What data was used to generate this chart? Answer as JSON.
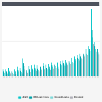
{
  "title": "",
  "series": {
    "s1": [
      1.0,
      1.0,
      1.2,
      1.0,
      1.0,
      1.3,
      1.2,
      2.5,
      1.3,
      1.4,
      1.5,
      1.6,
      1.5,
      1.7,
      1.8,
      1.6,
      1.7,
      1.9,
      2.0,
      1.9,
      2.1,
      2.2,
      2.3,
      2.5,
      2.6,
      2.8,
      3.0,
      3.2,
      3.6,
      3.8,
      4.2,
      9.5,
      4.8,
      4.2
    ],
    "s2": [
      0.7,
      0.7,
      0.8,
      0.7,
      0.7,
      0.9,
      0.8,
      1.8,
      0.9,
      1.0,
      1.1,
      1.2,
      1.1,
      1.3,
      1.4,
      1.2,
      1.3,
      1.5,
      1.6,
      1.5,
      1.7,
      1.8,
      1.9,
      2.1,
      2.2,
      2.4,
      2.6,
      2.8,
      3.2,
      3.4,
      3.8,
      6.5,
      4.2,
      3.8
    ],
    "s3": [
      0.5,
      0.5,
      0.6,
      0.5,
      0.5,
      0.7,
      0.6,
      1.4,
      0.7,
      0.8,
      0.9,
      1.0,
      0.9,
      1.1,
      1.2,
      1.0,
      1.1,
      1.3,
      1.4,
      1.3,
      1.5,
      1.6,
      1.7,
      1.9,
      2.0,
      2.2,
      2.4,
      2.6,
      3.0,
      3.2,
      3.6,
      5.5,
      3.8,
      3.4
    ],
    "s4": [
      0.3,
      0.3,
      0.4,
      0.3,
      0.3,
      0.5,
      0.4,
      1.0,
      0.5,
      0.6,
      0.7,
      0.8,
      0.7,
      0.9,
      1.0,
      0.8,
      0.9,
      1.1,
      1.2,
      1.1,
      1.3,
      1.4,
      1.5,
      1.7,
      1.8,
      2.0,
      2.2,
      2.4,
      2.8,
      3.0,
      3.4,
      4.5,
      3.5,
      3.1
    ]
  },
  "colors": [
    "#00c5c8",
    "#00a0a8",
    "#7dd8d8",
    "#b0b0b8"
  ],
  "legend_labels": [
    "2020",
    "WR/Liabilities",
    "Closed/Liabs",
    "Blended"
  ],
  "legend_colors": [
    "#00c5c8",
    "#00a0a8",
    "#7dd8d8",
    "#b0b0b8"
  ],
  "background_color": "#f5f5f5",
  "plot_bg": "#ffffff",
  "grid_color": "#d8d8d8",
  "n_groups": 34,
  "bar_width": 0.2,
  "ylim": [
    0,
    10.5
  ],
  "top_bg_color": "#2e3440"
}
